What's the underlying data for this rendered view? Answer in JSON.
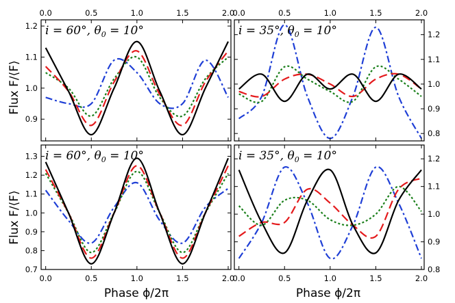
{
  "chart_data": [
    {
      "type": "line",
      "title": "i = 60°, θ0 = 10°",
      "title_bind": {
        "a": "i = 60",
        "b": "°, ",
        "c": "θ",
        "d": "0",
        "e": " = 10°"
      },
      "ylabel": "Flux F/⟨F⟩",
      "xlabel": "",
      "xlim": [
        -0.05,
        2.03
      ],
      "ylim": [
        0.83,
        1.22
      ],
      "xticks": [
        "0.0",
        "0.5",
        "1.0",
        "1.5",
        "2.0"
      ],
      "top_xticks": [
        "0.0",
        "0.5",
        "1.0",
        "1.5",
        "2.0"
      ],
      "yticks": [
        "0.9",
        "1.0",
        "1.1",
        "1.2"
      ],
      "yaxis_side": "left",
      "series": [
        {
          "name": "solid",
          "x": [
            0.0,
            0.25,
            0.5,
            0.75,
            1.0,
            1.25,
            1.5,
            1.75,
            2.0
          ],
          "values": [
            1.13,
            0.99,
            0.85,
            1.0,
            1.15,
            0.99,
            0.85,
            1.0,
            1.15
          ]
        },
        {
          "name": "dashed",
          "x": [
            0.0,
            0.25,
            0.5,
            0.75,
            1.0,
            1.25,
            1.5,
            1.75,
            2.0
          ],
          "values": [
            1.07,
            0.99,
            0.88,
            1.02,
            1.12,
            0.98,
            0.88,
            1.02,
            1.12
          ]
        },
        {
          "name": "dotted",
          "x": [
            0.0,
            0.25,
            0.5,
            0.75,
            1.0,
            1.25,
            1.5,
            1.75,
            2.0
          ],
          "values": [
            1.05,
            1.0,
            0.91,
            1.03,
            1.1,
            0.97,
            0.91,
            1.03,
            1.1
          ]
        },
        {
          "name": "dashdot",
          "x": [
            0.0,
            0.25,
            0.5,
            0.75,
            1.0,
            1.25,
            1.5,
            1.75,
            2.0
          ],
          "values": [
            0.97,
            0.95,
            0.95,
            1.09,
            1.05,
            0.95,
            0.95,
            1.09,
            0.97
          ]
        }
      ]
    },
    {
      "type": "line",
      "title": "i = 35°, θ0 = 10°",
      "title_bind": {
        "a": "i = 35",
        "b": "°, ",
        "c": "θ",
        "d": "0",
        "e": " = 10°"
      },
      "ylabel": "",
      "xlabel": "",
      "xlim": [
        -0.05,
        2.03
      ],
      "ylim": [
        0.77,
        1.26
      ],
      "xticks": [
        "0.0",
        "0.5",
        "1.0",
        "1.5",
        "2.0"
      ],
      "top_xticks": [
        "0.0",
        "0.5",
        "1.0",
        "1.5",
        "2.0"
      ],
      "yticks": [
        "0.8",
        "0.9",
        "1.0",
        "1.1",
        "1.2"
      ],
      "yaxis_side": "right",
      "series": [
        {
          "name": "solid",
          "x": [
            0.0,
            0.25,
            0.5,
            0.75,
            1.0,
            1.25,
            1.5,
            1.75,
            2.0
          ],
          "values": [
            0.98,
            1.04,
            0.93,
            1.04,
            0.98,
            1.04,
            0.93,
            1.04,
            0.98
          ]
        },
        {
          "name": "dashed",
          "x": [
            0.0,
            0.25,
            0.5,
            0.75,
            1.0,
            1.25,
            1.5,
            1.75,
            2.0
          ],
          "values": [
            0.97,
            0.95,
            1.02,
            1.04,
            1.0,
            0.95,
            1.02,
            1.04,
            0.98
          ]
        },
        {
          "name": "dotted",
          "x": [
            0.0,
            0.25,
            0.5,
            0.75,
            1.0,
            1.25,
            1.5,
            1.75,
            2.0
          ],
          "values": [
            0.96,
            0.93,
            1.07,
            1.02,
            0.97,
            0.93,
            1.07,
            1.02,
            0.95
          ]
        },
        {
          "name": "dashdot",
          "x": [
            0.0,
            0.25,
            0.5,
            0.75,
            1.0,
            1.25,
            1.5,
            1.75,
            2.0
          ],
          "values": [
            0.86,
            0.95,
            1.24,
            0.95,
            0.78,
            0.95,
            1.23,
            0.95,
            0.78
          ]
        }
      ]
    },
    {
      "type": "line",
      "title": "i = 60°, θ0 = 10°",
      "title_bind": {
        "a": "i = 60",
        "b": "°, ",
        "c": "θ",
        "d": "0",
        "e": " = 10°"
      },
      "ylabel": "Flux F/⟨F⟩",
      "xlabel": "Phase ϕ/2π",
      "xlim": [
        -0.05,
        2.03
      ],
      "ylim": [
        0.7,
        1.36
      ],
      "xticks": [
        "0.0",
        "0.5",
        "1.0",
        "1.5",
        "2.0"
      ],
      "top_xticks": [],
      "yticks": [
        "0.7",
        "0.8",
        "0.9",
        "1.0",
        "1.1",
        "1.2",
        "1.3"
      ],
      "yaxis_side": "left",
      "series": [
        {
          "name": "solid",
          "x": [
            0.0,
            0.25,
            0.5,
            0.75,
            1.0,
            1.25,
            1.5,
            1.75,
            2.0
          ],
          "values": [
            1.27,
            1.0,
            0.73,
            1.0,
            1.29,
            1.0,
            0.73,
            1.0,
            1.29
          ]
        },
        {
          "name": "dashed",
          "x": [
            0.0,
            0.25,
            0.5,
            0.75,
            1.0,
            1.25,
            1.5,
            1.75,
            2.0
          ],
          "values": [
            1.23,
            1.0,
            0.76,
            1.0,
            1.25,
            1.0,
            0.76,
            1.0,
            1.25
          ]
        },
        {
          "name": "dotted",
          "x": [
            0.0,
            0.25,
            0.5,
            0.75,
            1.0,
            1.25,
            1.5,
            1.75,
            2.0
          ],
          "values": [
            1.21,
            1.0,
            0.79,
            1.0,
            1.22,
            1.0,
            0.79,
            1.0,
            1.21
          ]
        },
        {
          "name": "dashdot",
          "x": [
            0.0,
            0.25,
            0.5,
            0.75,
            1.0,
            1.25,
            1.5,
            1.75,
            2.0
          ],
          "values": [
            1.12,
            0.96,
            0.84,
            1.03,
            1.16,
            0.96,
            0.84,
            1.03,
            1.13
          ]
        }
      ]
    },
    {
      "type": "line",
      "title": "i = 35°, θ0 = 10°",
      "title_bind": {
        "a": "i = 35",
        "b": "°, ",
        "c": "θ",
        "d": "0",
        "e": " = 10°"
      },
      "ylabel": "",
      "xlabel": "Phase ϕ/2π",
      "xlim": [
        -0.05,
        2.03
      ],
      "ylim": [
        0.8,
        1.25
      ],
      "xticks": [
        "0.0",
        "0.5",
        "1.0",
        "1.5",
        "2.0"
      ],
      "top_xticks": [],
      "yticks": [
        "0.8",
        "0.9",
        "1.0",
        "1.1",
        "1.2"
      ],
      "yaxis_side": "right",
      "series": [
        {
          "name": "solid",
          "x": [
            0.0,
            0.25,
            0.5,
            0.75,
            1.0,
            1.25,
            1.5,
            1.75,
            2.0
          ],
          "values": [
            1.16,
            0.97,
            0.86,
            1.05,
            1.16,
            0.96,
            0.86,
            1.05,
            1.16
          ]
        },
        {
          "name": "dashed",
          "x": [
            0.0,
            0.25,
            0.5,
            0.75,
            1.0,
            1.25,
            1.5,
            1.75,
            2.0
          ],
          "values": [
            0.92,
            0.97,
            0.97,
            1.09,
            1.04,
            0.96,
            0.92,
            1.09,
            1.13
          ]
        },
        {
          "name": "dotted",
          "x": [
            0.0,
            0.25,
            0.5,
            0.75,
            1.0,
            1.25,
            1.5,
            1.75,
            2.0
          ],
          "values": [
            1.03,
            0.96,
            1.05,
            1.05,
            0.98,
            0.96,
            1.0,
            1.1,
            1.01
          ]
        },
        {
          "name": "dashdot",
          "x": [
            0.0,
            0.25,
            0.5,
            0.75,
            1.0,
            1.25,
            1.5,
            1.75,
            2.0
          ],
          "values": [
            0.84,
            0.97,
            1.17,
            1.04,
            0.84,
            0.96,
            1.17,
            1.04,
            0.84
          ]
        }
      ]
    }
  ],
  "colors": {
    "solid": "#000000",
    "dashed": "#e41a1c",
    "dotted": "#1a7f1a",
    "dashdot": "#1f3fd6"
  }
}
